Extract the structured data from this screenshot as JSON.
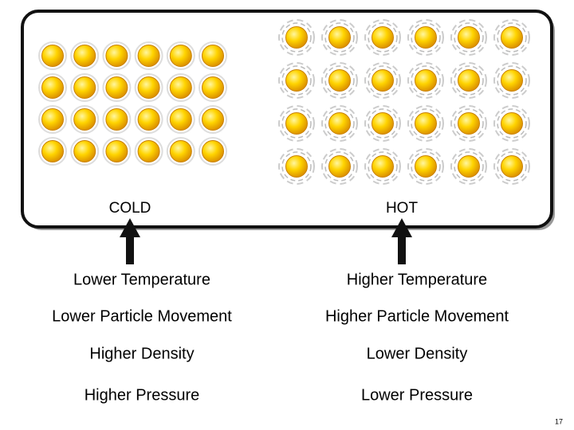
{
  "labels": {
    "cold": "COLD",
    "hot": "HOT"
  },
  "cold_properties": [
    "Lower Temperature",
    "Lower Particle Movement",
    "Higher Density",
    "Higher Pressure"
  ],
  "hot_properties": [
    "Higher Temperature",
    "Higher Particle Movement",
    "Lower Density",
    "Lower Pressure"
  ],
  "page_number": "17"
}
